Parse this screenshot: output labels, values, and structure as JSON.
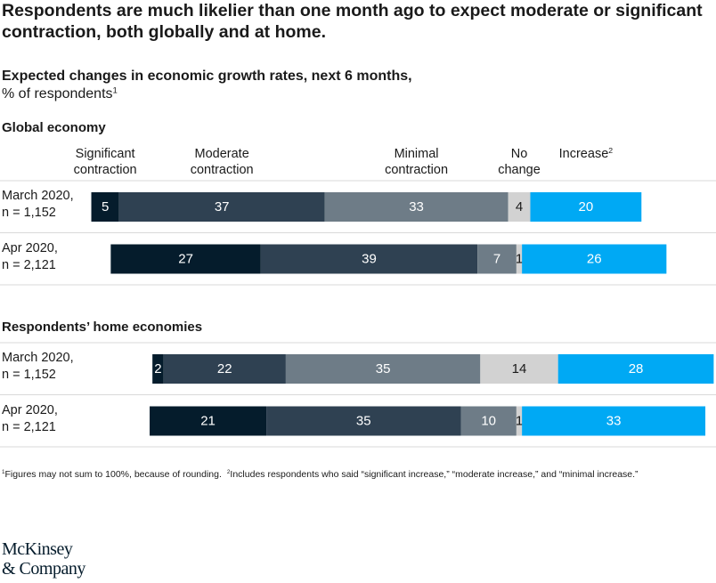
{
  "chart_data": {
    "type": "bar",
    "title": "Respondents are much likelier than one month ago to expect moderate or significant contraction, both globally and at home.",
    "subtitle": [
      "Expected changes in economic growth rates, next 6 months,",
      "% of respondents"
    ],
    "subtitle_note": "1",
    "series": [
      {
        "name": "Significant\ncontraction",
        "color": "#051c2c"
      },
      {
        "name": "Moderate\ncontraction",
        "color": "#2f4152"
      },
      {
        "name": "Minimal\ncontraction",
        "color": "#6e7c87"
      },
      {
        "name": "No\nchange",
        "color": "#d2d2d2"
      },
      {
        "name": "Increase",
        "color": "#00a9f4",
        "note": "2"
      }
    ],
    "panels": [
      {
        "title": "Global economy",
        "categories": [
          "March 2020,\nn = 1,152",
          "Apr 2020,\nn = 2,121"
        ],
        "values": [
          [
            5,
            37,
            33,
            4,
            20
          ],
          [
            27,
            39,
            7,
            1,
            26
          ]
        ]
      },
      {
        "title": "Respondents’ home economies",
        "categories": [
          "March 2020,\nn = 1,152",
          "Apr 2020,\nn = 2,121"
        ],
        "values": [
          [
            2,
            22,
            35,
            14,
            28
          ],
          [
            21,
            35,
            10,
            1,
            33
          ]
        ]
      }
    ]
  },
  "footnotes": [
    {
      "marker": "1",
      "text": "Figures may not sum to 100%, because of rounding."
    },
    {
      "marker": "2",
      "text": "Includes respondents who said “significant increase,” “moderate increase,” and “minimal increase.”"
    }
  ],
  "logo": "McKinsey\n& Company"
}
